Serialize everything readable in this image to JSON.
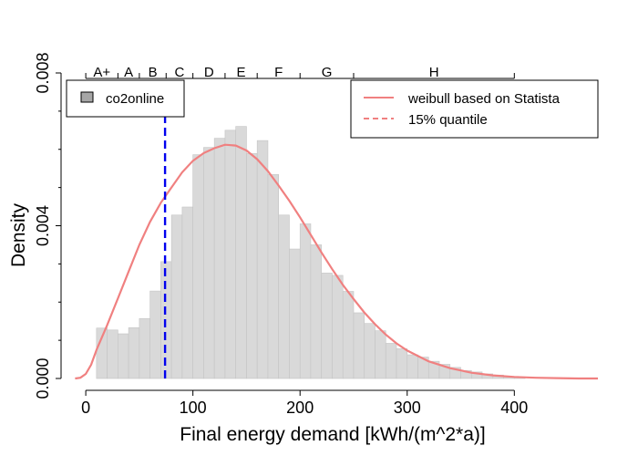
{
  "chart_data": {
    "type": "bar",
    "title": "",
    "xlabel": "Final energy demand [kWh/(m^2*a)]",
    "ylabel": "Density",
    "xlim": [
      -12,
      478
    ],
    "ylim": [
      0,
      0.008
    ],
    "x_ticks": [
      "0",
      "100",
      "200",
      "300",
      "400"
    ],
    "y_ticks": [
      "0.000",
      "0.004",
      "0.008"
    ],
    "histogram": {
      "name": "co2online",
      "color": "#d9d9d9",
      "bin_width": 10,
      "bin_start": 10,
      "values": [
        0.00132,
        0.00127,
        0.00117,
        0.00133,
        0.00157,
        0.00229,
        0.00306,
        0.00428,
        0.00449,
        0.00586,
        0.00605,
        0.00629,
        0.0065,
        0.0066,
        0.00589,
        0.00623,
        0.00534,
        0.00428,
        0.00339,
        0.00405,
        0.0035,
        0.00276,
        0.0027,
        0.00228,
        0.00172,
        0.00144,
        0.00125,
        0.00092,
        0.00078,
        0.00062,
        0.00056,
        0.00045,
        0.00037,
        0.00029,
        0.00021,
        0.00017,
        0.00012,
        9e-05,
        4e-05,
        3e-05
      ]
    },
    "weibull_curve": {
      "name": "weibull based on Statista",
      "color": "#f08080",
      "x": [
        -10,
        -5,
        0,
        5,
        10,
        20,
        30,
        40,
        50,
        60,
        70,
        80,
        90,
        100,
        110,
        120,
        130,
        140,
        150,
        160,
        170,
        180,
        190,
        200,
        210,
        220,
        230,
        240,
        250,
        260,
        270,
        280,
        290,
        300,
        320,
        340,
        360,
        380,
        400,
        420,
        440,
        460,
        478
      ],
      "y": [
        0.0,
        2e-05,
        0.00012,
        0.00036,
        0.00075,
        0.0014,
        0.0021,
        0.0028,
        0.0035,
        0.0041,
        0.0046,
        0.005,
        0.0054,
        0.0057,
        0.0059,
        0.00603,
        0.00612,
        0.0061,
        0.00597,
        0.00574,
        0.00543,
        0.00505,
        0.00465,
        0.00422,
        0.00376,
        0.0033,
        0.00286,
        0.00245,
        0.00208,
        0.00173,
        0.00142,
        0.00115,
        0.00092,
        0.00073,
        0.00045,
        0.00027,
        0.00015,
        8e-05,
        4e-05,
        2e-05,
        1e-05,
        0.0,
        0.0
      ]
    },
    "quantile_line": {
      "name": "15% quantile",
      "x": 74,
      "color": "#0000ee",
      "legend_color": "#f08080"
    },
    "energy_classes": {
      "labels": [
        "A+",
        "A",
        "B",
        "C",
        "D",
        "E",
        "F",
        "G",
        "H"
      ],
      "boundaries": [
        0,
        30,
        50,
        75,
        100,
        130,
        160,
        200,
        250,
        400
      ]
    },
    "legend_left": "top-left",
    "legend_right": "top-right",
    "grid": false
  }
}
